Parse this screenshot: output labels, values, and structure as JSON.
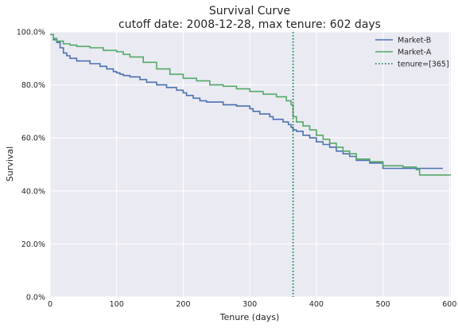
{
  "chart_data": {
    "type": "line",
    "title": "Survival Curve",
    "subtitle": "cutoff date: 2008-12-28, max tenure: 602 days",
    "xlabel": "Tenure (days)",
    "ylabel": "Survival",
    "xlim": [
      0,
      602
    ],
    "ylim": [
      0,
      1
    ],
    "xticks": [
      0,
      100,
      200,
      300,
      400,
      500,
      600
    ],
    "yticks": [
      0,
      0.2,
      0.4,
      0.6,
      0.8,
      1.0
    ],
    "xtick_labels": [
      "0",
      "100",
      "200",
      "300",
      "400",
      "500",
      "600"
    ],
    "ytick_labels": [
      "0.0%",
      "20.0%",
      "40.0%",
      "60.0%",
      "80.0%",
      "100.0%"
    ],
    "grid": true,
    "legend": "top-right",
    "series": [
      {
        "name": "Market-B",
        "color": "#4c72b0",
        "x": [
          0,
          5,
          10,
          15,
          20,
          25,
          30,
          40,
          60,
          75,
          85,
          95,
          100,
          105,
          110,
          120,
          135,
          145,
          160,
          175,
          190,
          200,
          205,
          215,
          225,
          235,
          260,
          280,
          300,
          305,
          315,
          330,
          335,
          350,
          358,
          362,
          365,
          370,
          380,
          390,
          400,
          410,
          420,
          430,
          440,
          450,
          460,
          480,
          500,
          520,
          560,
          590
        ],
        "y": [
          0.99,
          0.97,
          0.96,
          0.94,
          0.92,
          0.91,
          0.9,
          0.89,
          0.88,
          0.87,
          0.86,
          0.85,
          0.845,
          0.84,
          0.835,
          0.83,
          0.82,
          0.81,
          0.8,
          0.79,
          0.78,
          0.77,
          0.76,
          0.75,
          0.74,
          0.735,
          0.725,
          0.72,
          0.71,
          0.7,
          0.69,
          0.68,
          0.67,
          0.66,
          0.65,
          0.64,
          0.63,
          0.625,
          0.61,
          0.6,
          0.585,
          0.575,
          0.565,
          0.55,
          0.54,
          0.53,
          0.515,
          0.505,
          0.485,
          0.485,
          0.485,
          0.485
        ]
      },
      {
        "name": "Market-A",
        "color": "#55a868",
        "x": [
          0,
          5,
          10,
          20,
          30,
          40,
          60,
          80,
          100,
          110,
          120,
          140,
          160,
          180,
          200,
          220,
          240,
          260,
          280,
          300,
          320,
          340,
          355,
          362,
          365,
          370,
          380,
          390,
          400,
          410,
          420,
          430,
          440,
          450,
          460,
          480,
          500,
          530,
          550,
          555,
          602
        ],
        "y": [
          0.99,
          0.975,
          0.965,
          0.955,
          0.95,
          0.945,
          0.94,
          0.93,
          0.925,
          0.915,
          0.905,
          0.885,
          0.86,
          0.84,
          0.825,
          0.815,
          0.8,
          0.795,
          0.785,
          0.775,
          0.765,
          0.755,
          0.74,
          0.725,
          0.68,
          0.66,
          0.645,
          0.63,
          0.61,
          0.595,
          0.58,
          0.565,
          0.55,
          0.54,
          0.52,
          0.51,
          0.495,
          0.49,
          0.48,
          0.46,
          0.46
        ]
      }
    ],
    "reference_lines": [
      {
        "name": "tenure=[365]",
        "x": 365,
        "color": "#0a7d3a",
        "style": "dotted"
      }
    ]
  }
}
